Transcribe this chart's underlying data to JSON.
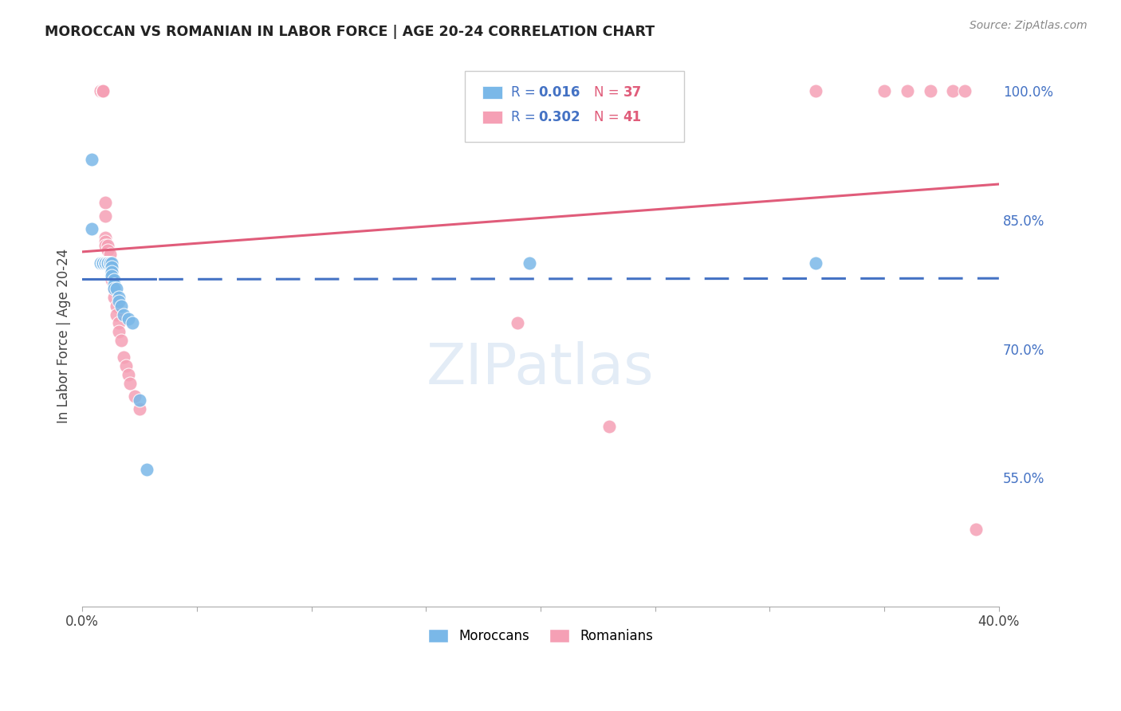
{
  "title": "MOROCCAN VS ROMANIAN IN LABOR FORCE | AGE 20-24 CORRELATION CHART",
  "source": "Source: ZipAtlas.com",
  "ylabel": "In Labor Force | Age 20-24",
  "xlim": [
    0.0,
    0.4
  ],
  "ylim": [
    0.4,
    1.03
  ],
  "x_ticks": [
    0.0,
    0.05,
    0.1,
    0.15,
    0.2,
    0.25,
    0.3,
    0.35,
    0.4
  ],
  "x_tick_labels": [
    "0.0%",
    "",
    "",
    "",
    "",
    "",
    "",
    "",
    "40.0%"
  ],
  "y_ticks_right": [
    0.55,
    0.7,
    0.85,
    1.0
  ],
  "moroccan_color": "#7ab8e8",
  "romanian_color": "#f5a0b5",
  "moroccan_line_color": "#4472C4",
  "romanian_line_color": "#E05C7A",
  "moroccan_x": [
    0.004,
    0.004,
    0.008,
    0.009,
    0.009,
    0.009,
    0.009,
    0.01,
    0.01,
    0.01,
    0.01,
    0.011,
    0.011,
    0.011,
    0.011,
    0.011,
    0.012,
    0.012,
    0.012,
    0.013,
    0.013,
    0.013,
    0.013,
    0.014,
    0.014,
    0.014,
    0.015,
    0.016,
    0.016,
    0.017,
    0.018,
    0.02,
    0.022,
    0.025,
    0.028,
    0.195,
    0.32
  ],
  "moroccan_y": [
    0.92,
    0.84,
    0.8,
    0.8,
    0.8,
    0.8,
    0.8,
    0.8,
    0.8,
    0.8,
    0.8,
    0.8,
    0.8,
    0.8,
    0.8,
    0.8,
    0.8,
    0.8,
    0.8,
    0.8,
    0.795,
    0.79,
    0.785,
    0.78,
    0.775,
    0.77,
    0.77,
    0.76,
    0.755,
    0.75,
    0.74,
    0.735,
    0.73,
    0.64,
    0.56,
    0.8,
    0.8
  ],
  "romanian_x": [
    0.008,
    0.008,
    0.009,
    0.009,
    0.009,
    0.009,
    0.009,
    0.009,
    0.01,
    0.01,
    0.01,
    0.01,
    0.01,
    0.011,
    0.011,
    0.012,
    0.012,
    0.013,
    0.013,
    0.014,
    0.014,
    0.015,
    0.015,
    0.016,
    0.016,
    0.017,
    0.018,
    0.019,
    0.02,
    0.021,
    0.023,
    0.025,
    0.19,
    0.23,
    0.32,
    0.35,
    0.36,
    0.37,
    0.38,
    0.385,
    0.39
  ],
  "romanian_y": [
    1.0,
    1.0,
    1.0,
    1.0,
    1.0,
    1.0,
    1.0,
    1.0,
    0.87,
    0.855,
    0.83,
    0.825,
    0.82,
    0.82,
    0.815,
    0.81,
    0.8,
    0.79,
    0.78,
    0.77,
    0.76,
    0.75,
    0.74,
    0.73,
    0.72,
    0.71,
    0.69,
    0.68,
    0.67,
    0.66,
    0.645,
    0.63,
    0.73,
    0.61,
    1.0,
    1.0,
    1.0,
    1.0,
    1.0,
    1.0,
    0.49
  ],
  "moroccan_split": 0.04,
  "background_color": "#ffffff",
  "grid_color": "#d0d0d0"
}
